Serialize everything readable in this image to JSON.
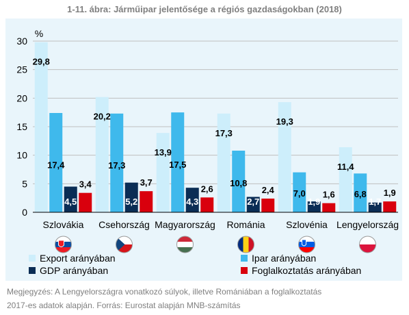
{
  "chart_data": {
    "type": "bar",
    "title": "1-11. ábra: Járműipar jelentősége a régiós gazdaságokban (2018)",
    "ylabel": "%",
    "ylim": [
      0,
      30
    ],
    "yticks": [
      0,
      5,
      10,
      15,
      20,
      25,
      30
    ],
    "categories": [
      "Szlovákia",
      "Csehország",
      "Magyarország",
      "Románia",
      "Szlovénia",
      "Lengyelország"
    ],
    "flag_icons": [
      "flag-slovakia-icon",
      "flag-czechia-icon",
      "flag-hungary-icon",
      "flag-romania-icon",
      "flag-slovenia-icon",
      "flag-poland-icon"
    ],
    "series": [
      {
        "name": "Export arányában",
        "color": "#cdeefb",
        "values": [
          29.8,
          20.2,
          13.9,
          17.3,
          19.3,
          11.4
        ],
        "labels": [
          "29,8",
          "20,2",
          "13,9",
          "17,3",
          "19,3",
          "11,4"
        ]
      },
      {
        "name": "Ipar arányában",
        "color": "#3fb9ec",
        "values": [
          17.4,
          17.3,
          17.5,
          10.8,
          7.0,
          6.8
        ],
        "labels": [
          "17,4",
          "17,3",
          "17,5",
          "10,8",
          "7,0",
          "6,8"
        ]
      },
      {
        "name": "GDP arányában",
        "color": "#0a2d55",
        "values": [
          4.5,
          5.2,
          4.3,
          2.7,
          1.9,
          1.7
        ],
        "labels": [
          "4,5",
          "5,2",
          "4,3",
          "2,7",
          "1,9",
          "1,7"
        ]
      },
      {
        "name": "Foglalkoztatás arányában",
        "color": "#d9000d",
        "values": [
          3.4,
          3.7,
          2.6,
          2.4,
          1.6,
          1.9
        ],
        "labels": [
          "3,4",
          "3,7",
          "2,6",
          "2,4",
          "1,6",
          "1,9"
        ]
      }
    ],
    "grid": true,
    "legend_position": "bottom"
  },
  "note": {
    "line1": "Megjegyzés: A Lengyelországra vonatkozó súlyok, illetve Romániában a foglalkoztatás",
    "line2": "2017-es adatok alapján. Forrás: Eurostat alapján MNB-számítás"
  }
}
